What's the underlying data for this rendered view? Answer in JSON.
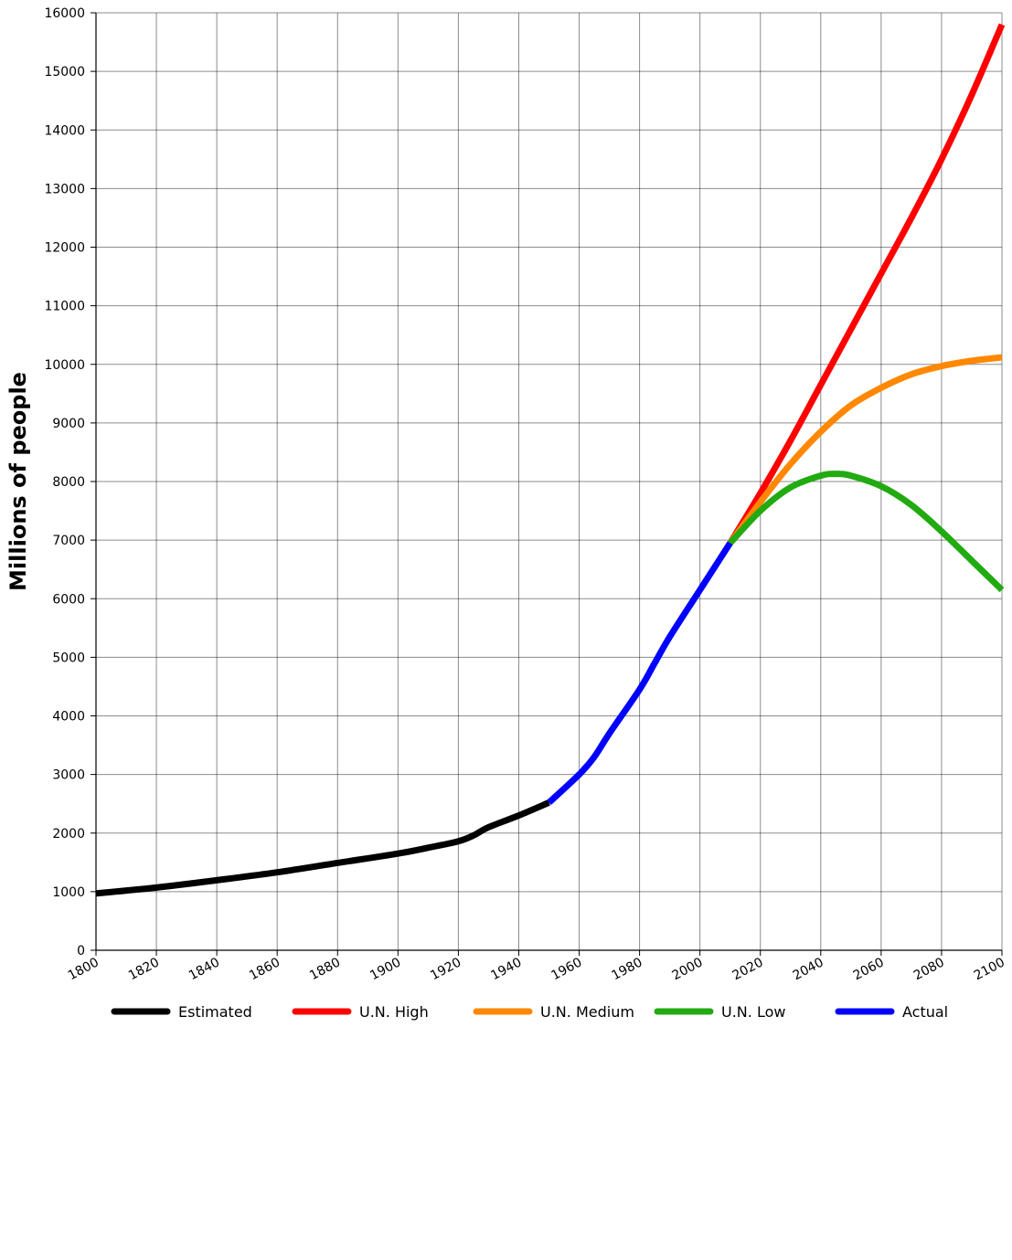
{
  "chart_data": {
    "type": "line",
    "title": "",
    "xlabel": "",
    "ylabel": "Millions of people",
    "xlim": [
      1800,
      2100
    ],
    "ylim": [
      0,
      16000
    ],
    "x_ticks": [
      "1800",
      "1820",
      "1840",
      "1860",
      "1880",
      "1900",
      "1920",
      "1940",
      "1960",
      "1980",
      "2000",
      "2020",
      "2040",
      "2060",
      "2080",
      "2100"
    ],
    "y_ticks": [
      "0",
      "1000",
      "2000",
      "3000",
      "4000",
      "5000",
      "6000",
      "7000",
      "8000",
      "9000",
      "10000",
      "11000",
      "12000",
      "13000",
      "14000",
      "15000",
      "16000"
    ],
    "grid": true,
    "legend_position": "bottom",
    "series": [
      {
        "name": "Estimated",
        "color": "#000000",
        "x": [
          1800,
          1820,
          1840,
          1860,
          1880,
          1900,
          1910,
          1920,
          1925,
          1930,
          1940,
          1950
        ],
        "y": [
          970,
          1070,
          1195,
          1330,
          1490,
          1650,
          1750,
          1860,
          1960,
          2100,
          2300,
          2520
        ]
      },
      {
        "name": "Actual",
        "color": "#0000ff",
        "x": [
          1950,
          1960,
          1965,
          1970,
          1980,
          1985,
          1990,
          2000,
          2010
        ],
        "y": [
          2520,
          3000,
          3300,
          3700,
          4450,
          4900,
          5350,
          6150,
          6950
        ]
      },
      {
        "name": "U.N. High",
        "color": "#ff0000",
        "x": [
          2010,
          2020,
          2030,
          2040,
          2050,
          2060,
          2070,
          2080,
          2090,
          2100
        ],
        "y": [
          6950,
          7800,
          8700,
          9650,
          10600,
          11550,
          12500,
          13500,
          14600,
          15800
        ]
      },
      {
        "name": "U.N. Medium",
        "color": "#ff8800",
        "x": [
          2010,
          2020,
          2030,
          2040,
          2050,
          2060,
          2070,
          2080,
          2090,
          2100
        ],
        "y": [
          6950,
          7650,
          8300,
          8850,
          9300,
          9600,
          9830,
          9970,
          10060,
          10120
        ]
      },
      {
        "name": "U.N. Low",
        "color": "#22aa11",
        "x": [
          2010,
          2020,
          2030,
          2040,
          2045,
          2050,
          2060,
          2070,
          2080,
          2090,
          2100
        ],
        "y": [
          6950,
          7500,
          7900,
          8100,
          8130,
          8100,
          7920,
          7600,
          7150,
          6650,
          6150
        ]
      }
    ],
    "legend": [
      "Estimated",
      "U.N. High",
      "U.N. Medium",
      "U.N. Low",
      "Actual"
    ]
  }
}
